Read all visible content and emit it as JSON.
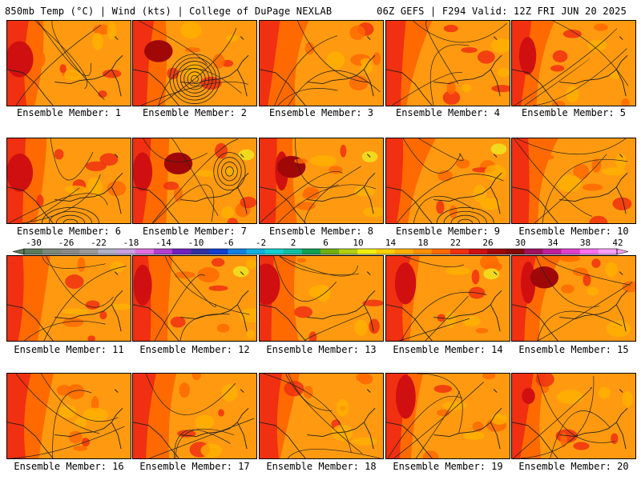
{
  "header": {
    "left": "850mb Temp (°C) | Wind (kts) | College of DuPage NEXLAB",
    "right": "06Z GEFS | F294 Valid: 12Z FRI JUN 20 2025"
  },
  "legend": {
    "ticks": [
      "-30",
      "-26",
      "-22",
      "-18",
      "-14",
      "-10",
      "-6",
      "-2",
      "2",
      "6",
      "10",
      "14",
      "18",
      "22",
      "26",
      "30",
      "34",
      "38",
      "42"
    ],
    "colors": [
      "#5a7a5a",
      "#7a8a7a",
      "#8a8a8a",
      "#9a9a9a",
      "#b0b0c8",
      "#c8a0e0",
      "#e070e0",
      "#b040d0",
      "#7020c0",
      "#3030a0",
      "#1040d0",
      "#1080e0",
      "#10b0e0",
      "#10d0d0",
      "#10c0a0",
      "#10a050",
      "#70b010",
      "#b0d010",
      "#f0f010",
      "#ffd000",
      "#ffb000",
      "#ff9000",
      "#ff6a00",
      "#f03010",
      "#d01010",
      "#a00808",
      "#800808",
      "#a01060",
      "#c020a0",
      "#e040d0",
      "#ff70f0",
      "#ffa0ff"
    ]
  },
  "members": [
    {
      "label": "Ensemble Member: 1"
    },
    {
      "label": "Ensemble Member: 2"
    },
    {
      "label": "Ensemble Member: 3"
    },
    {
      "label": "Ensemble Member: 4"
    },
    {
      "label": "Ensemble Member: 5"
    },
    {
      "label": "Ensemble Member: 6"
    },
    {
      "label": "Ensemble Member: 7"
    },
    {
      "label": "Ensemble Member: 8"
    },
    {
      "label": "Ensemble Member: 9"
    },
    {
      "label": "Ensemble Member: 10"
    },
    {
      "label": "Ensemble Member: 11"
    },
    {
      "label": "Ensemble Member: 12"
    },
    {
      "label": "Ensemble Member: 13"
    },
    {
      "label": "Ensemble Member: 14"
    },
    {
      "label": "Ensemble Member: 15"
    },
    {
      "label": "Ensemble Member: 16"
    },
    {
      "label": "Ensemble Member: 17"
    },
    {
      "label": "Ensemble Member: 18"
    },
    {
      "label": "Ensemble Member: 19"
    },
    {
      "label": "Ensemble Member: 20"
    }
  ],
  "palette": {
    "base": "#ff9a10",
    "warm": "#ff6a00",
    "hot": "#f03010",
    "hotter": "#d01010",
    "hottest": "#a00808",
    "cool": "#ffb000",
    "coolest": "#f0e020",
    "contour": "#202020",
    "border": "#000000"
  }
}
